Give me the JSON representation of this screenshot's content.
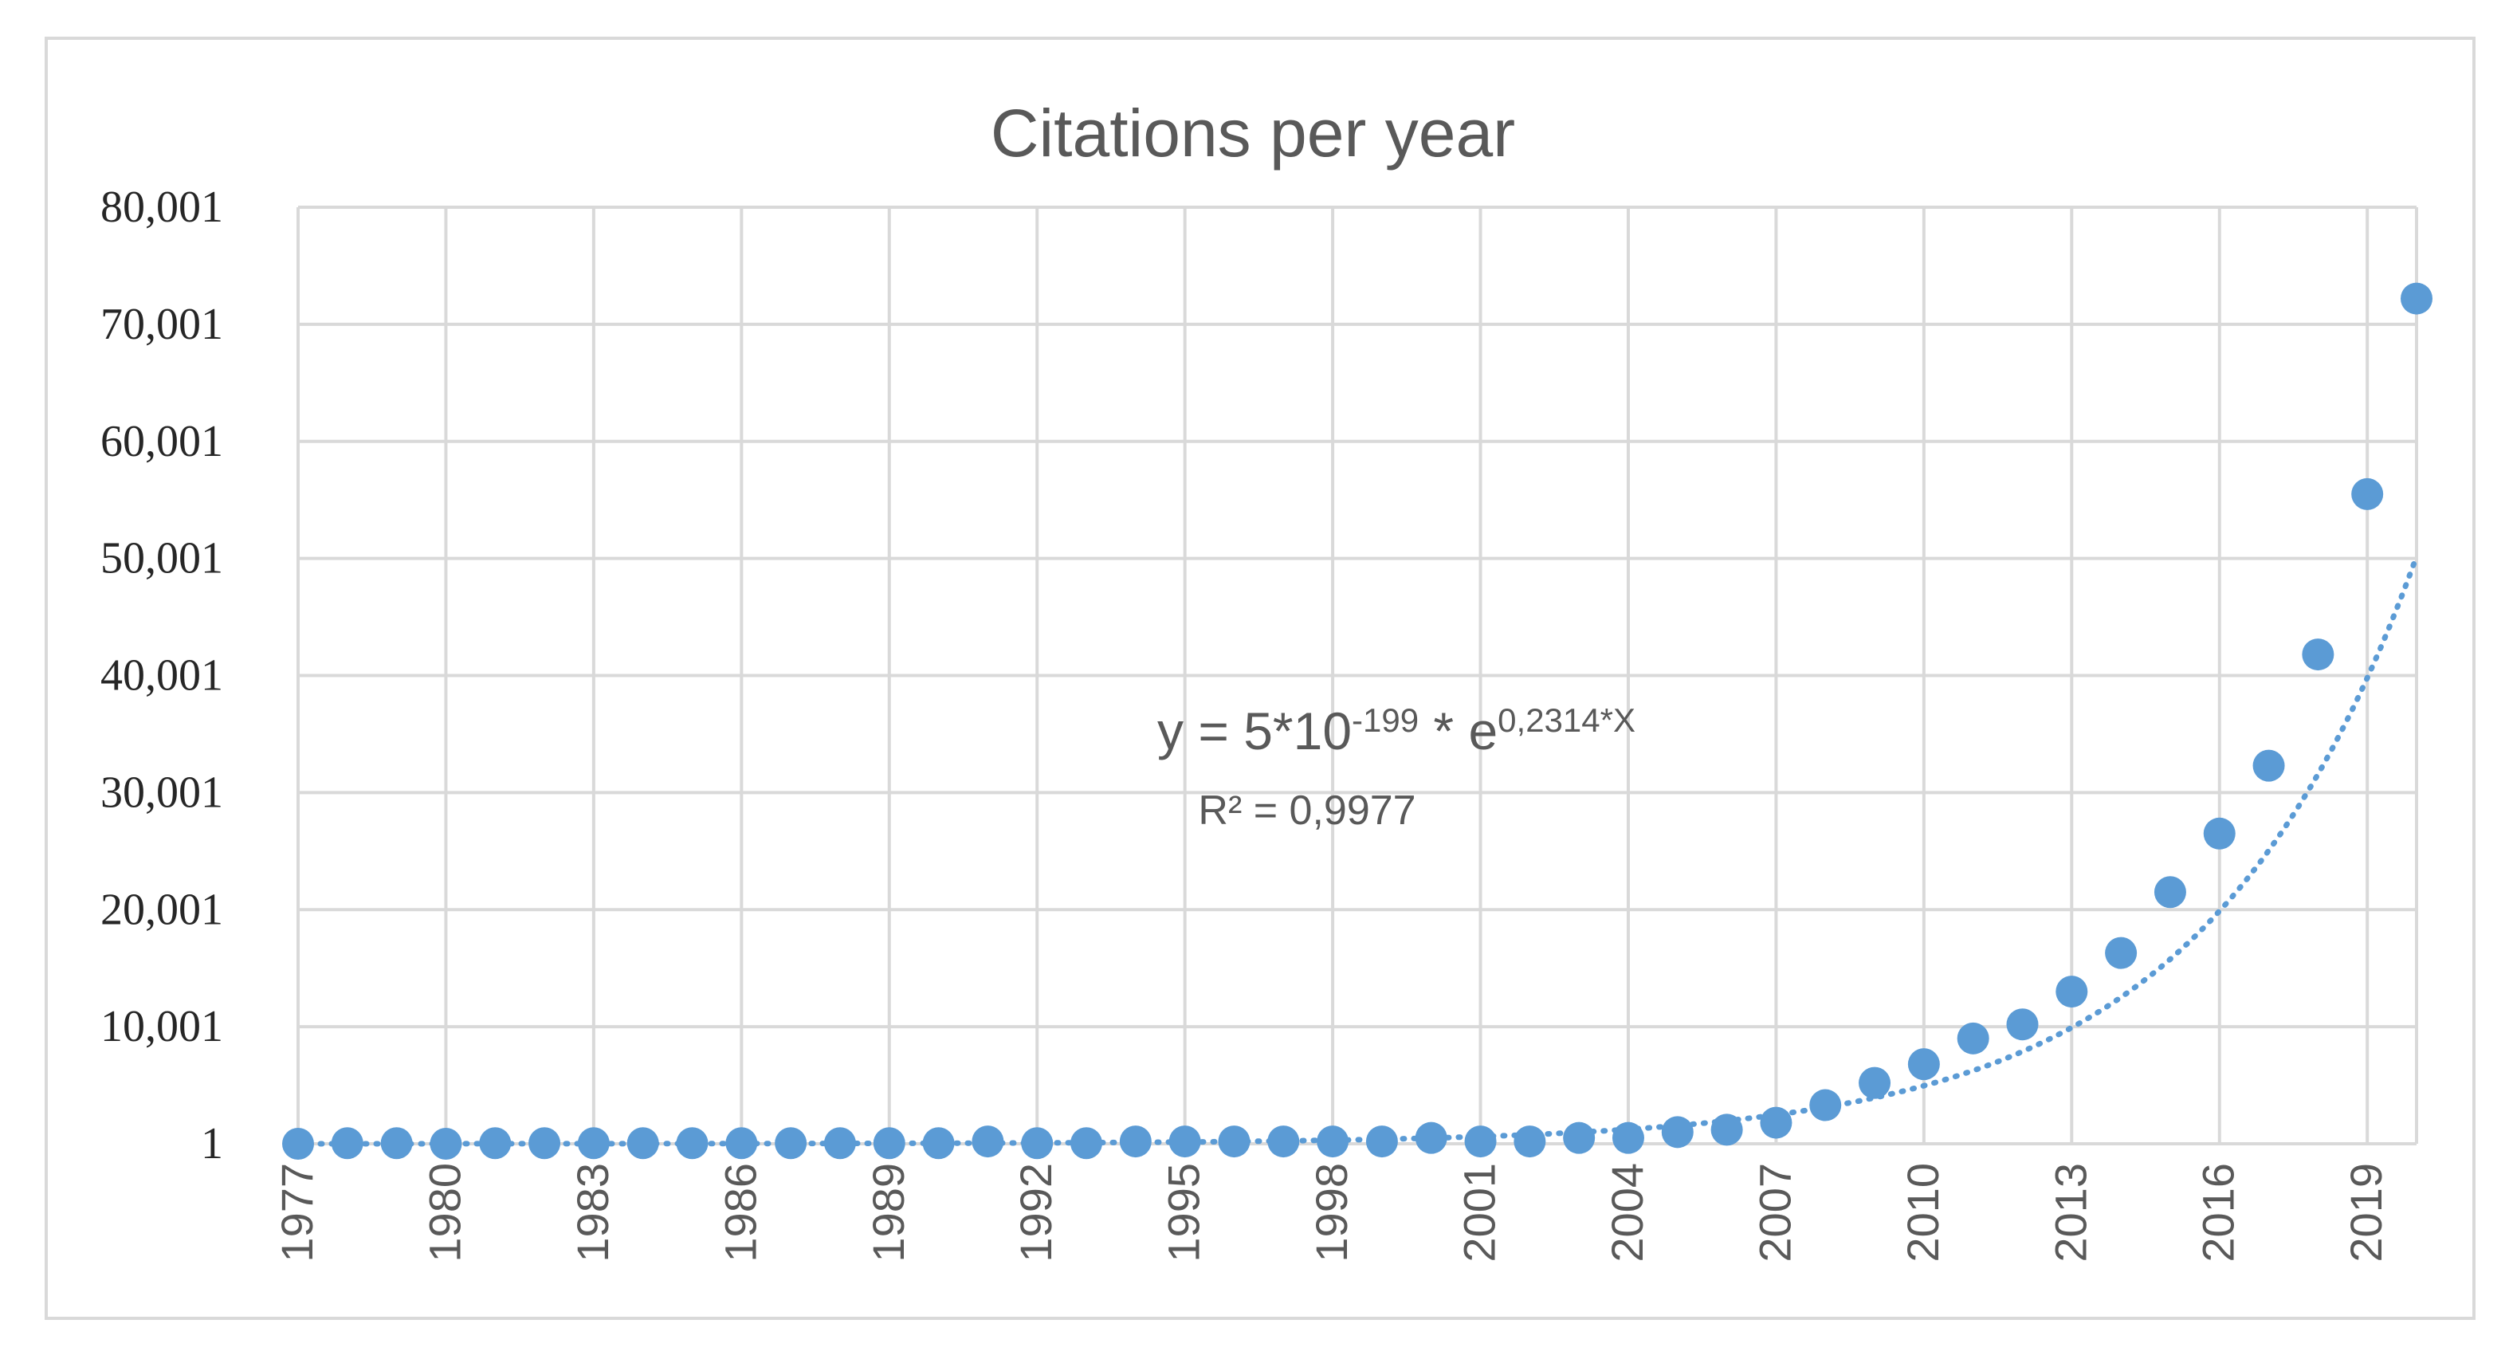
{
  "chart_data": {
    "type": "scatter",
    "title": "Citations per year",
    "xlabel": "",
    "ylabel": "",
    "x": [
      1977,
      1978,
      1979,
      1980,
      1981,
      1982,
      1983,
      1984,
      1985,
      1986,
      1987,
      1988,
      1989,
      1990,
      1991,
      1992,
      1993,
      1994,
      1995,
      1996,
      1997,
      1998,
      1999,
      2000,
      2001,
      2002,
      2003,
      2004,
      2005,
      2006,
      2007,
      2008,
      2009,
      2010,
      2011,
      2012,
      2013,
      2014,
      2015,
      2016,
      2017,
      2018,
      2019,
      2020
    ],
    "values": [
      1,
      50,
      50,
      1,
      50,
      50,
      50,
      50,
      50,
      50,
      50,
      50,
      50,
      50,
      200,
      50,
      50,
      200,
      200,
      200,
      200,
      200,
      200,
      500,
      200,
      200,
      500,
      500,
      1000,
      1200,
      1800,
      3300,
      5200,
      6800,
      9000,
      10200,
      13000,
      16300,
      21500,
      26500,
      32300,
      41800,
      55500,
      72200
    ],
    "series": [
      {
        "name": "Citations",
        "values": [
          1,
          50,
          50,
          1,
          50,
          50,
          50,
          50,
          50,
          50,
          50,
          50,
          50,
          50,
          200,
          50,
          50,
          200,
          200,
          200,
          200,
          200,
          200,
          500,
          200,
          200,
          500,
          500,
          1000,
          1200,
          1800,
          3300,
          5200,
          6800,
          9000,
          10200,
          13000,
          16300,
          21500,
          26500,
          32300,
          41800,
          55500,
          72200
        ]
      }
    ],
    "trendline": {
      "type": "exponential",
      "a": 5e-199,
      "b": 0.2314,
      "equation_prefix": "y = 5*10",
      "equation_exp1": "-199",
      "equation_mid": " * e",
      "equation_exp2": "0,2314*X",
      "r_squared_text": "R² = 0,9977"
    },
    "xlim": [
      1977,
      2020
    ],
    "ylim": [
      1,
      80001
    ],
    "y_ticks": [
      "1",
      "10,001",
      "20,001",
      "30,001",
      "40,001",
      "50,001",
      "60,001",
      "70,001",
      "80,001"
    ],
    "x_ticks": [
      "1977",
      "1980",
      "1983",
      "1986",
      "1989",
      "1992",
      "1995",
      "1998",
      "2001",
      "2004",
      "2007",
      "2010",
      "2013",
      "2016",
      "2019"
    ],
    "grid": true,
    "legend": "none",
    "colors": {
      "marker": "#5b9bd5",
      "trendline": "#5b9bd5",
      "grid": "#d9d9d9",
      "text": "#595959"
    }
  }
}
